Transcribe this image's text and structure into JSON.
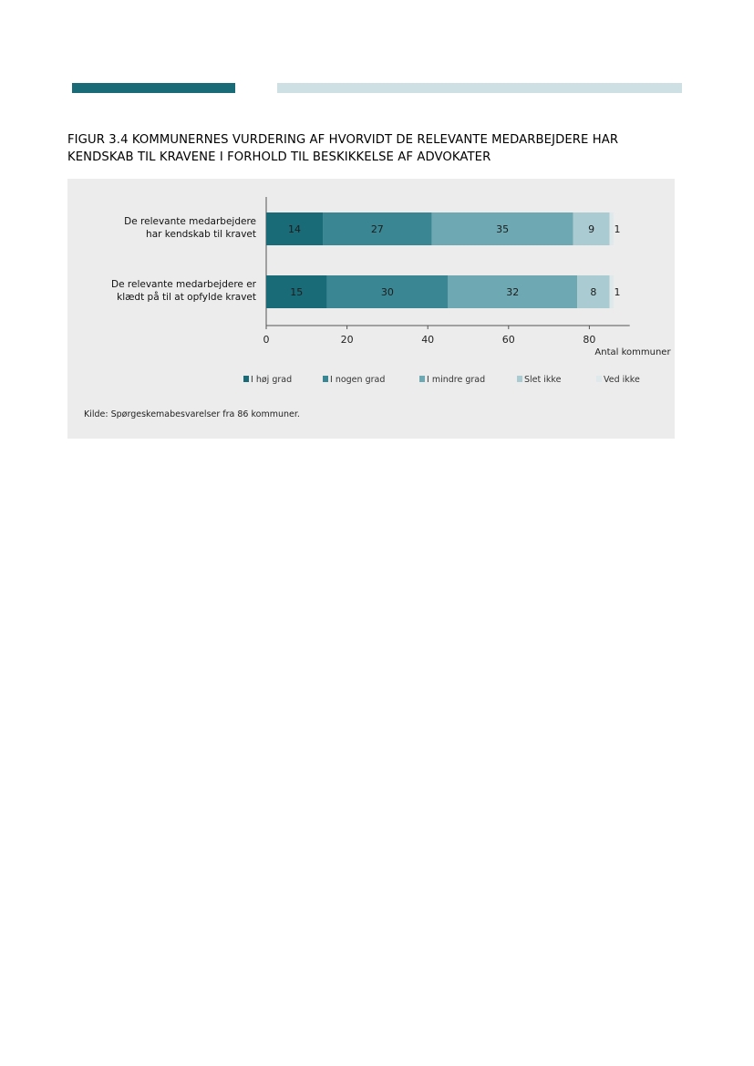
{
  "figure_title_line1": "FIGUR 3.4 KOMMUNERNES VURDERING AF HVORVIDT DE RELEVANTE MEDARBEJDERE HAR",
  "figure_title_line2": "KENDSKAB TIL KRAVENE I FORHOLD TIL BESKIKKELSE AF ADVOKATER",
  "source": "Kilde: Spørgeskemabesvarelser fra 86 kommuner.",
  "chart_data": {
    "type": "bar",
    "orientation": "horizontal",
    "stacked": true,
    "categories": [
      [
        "De relevante medarbejdere",
        "har kendskab til kravet"
      ],
      [
        "De relevante medarbejdere er",
        "klædt på til at opfylde kravet"
      ]
    ],
    "series": [
      {
        "name": "I høj grad",
        "values": [
          14,
          15
        ],
        "color": "#1a6b78"
      },
      {
        "name": "I nogen grad",
        "values": [
          27,
          30
        ],
        "color": "#3a8693"
      },
      {
        "name": "I mindre grad",
        "values": [
          35,
          32
        ],
        "color": "#6ea8b2"
      },
      {
        "name": "Slet ikke",
        "values": [
          9,
          8
        ],
        "color": "#a9cbd1"
      },
      {
        "name": "Ved ikke",
        "values": [
          1,
          1
        ],
        "color": "#dfe9eb"
      }
    ],
    "xlim": [
      0,
      90
    ],
    "xticks": [
      0,
      20,
      40,
      60,
      80
    ],
    "xlabel": "Antal kommuner",
    "legend_position": "bottom"
  }
}
